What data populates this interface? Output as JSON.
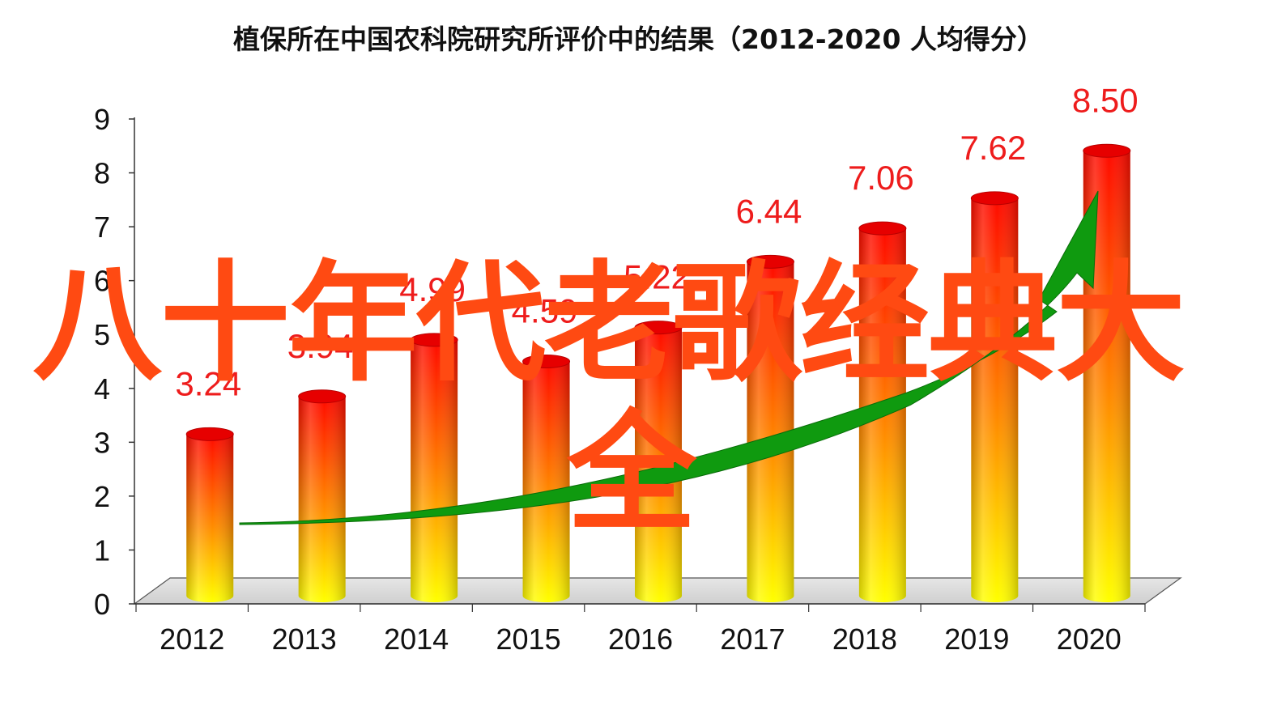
{
  "chart_data": {
    "type": "bar",
    "title": "植保所在中国农科院研究所评价中的结果（2012-2020 人均得分）",
    "categories": [
      "2012",
      "2013",
      "2014",
      "2015",
      "2016",
      "2017",
      "2018",
      "2019",
      "2020"
    ],
    "values": [
      3.24,
      3.94,
      4.99,
      4.59,
      5.22,
      6.44,
      7.06,
      7.62,
      8.5
    ],
    "data_labels": [
      "3.24",
      "3.94",
      "4.99",
      "4.59",
      "5.22",
      "6.44",
      "7.06",
      "7.62",
      "8.50"
    ],
    "ylim": [
      0,
      9
    ],
    "yticks": [
      "0",
      "1",
      "2",
      "3",
      "4",
      "5",
      "6",
      "7",
      "8",
      "9"
    ],
    "xlabel": "",
    "ylabel": "",
    "grid": false,
    "style": "3d-cylinder",
    "bar_gradient": {
      "top": "#ff0a00",
      "middle": "#ff8c00",
      "bottom": "#ffff00"
    },
    "label_color": "#ee1c1c",
    "trend_arrow_color": "#0f9a0f"
  },
  "watermark": {
    "line1": "八十年代老歌经典大",
    "line2": "全",
    "color": "#ff4a12"
  }
}
